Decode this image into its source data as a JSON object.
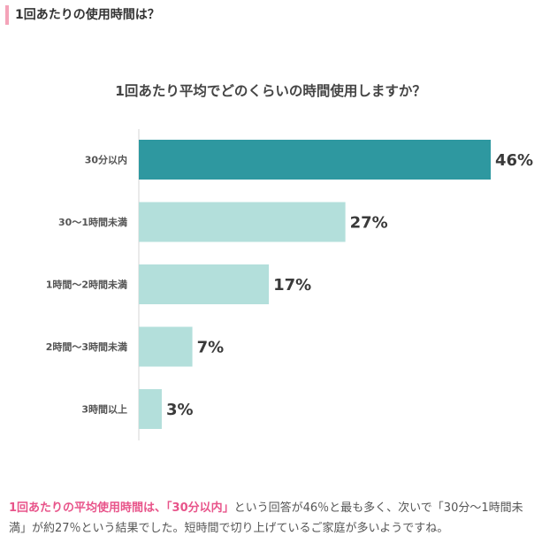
{
  "section": {
    "heading": "1回あたりの使用時間は？",
    "accent_color": "#f4a3b9"
  },
  "chart_data": {
    "type": "bar",
    "orientation": "horizontal",
    "title": "1回あたり平均でどのくらいの時間使用しますか？",
    "categories": [
      "30分以内",
      "30～1時間未満",
      "1時間～2時間未満",
      "2時間～3時間未満",
      "3時間以上"
    ],
    "values": [
      46,
      27,
      17,
      7,
      3
    ],
    "value_labels": [
      "46%",
      "27%",
      "17%",
      "7%",
      "3%"
    ],
    "unit": "%",
    "xlim": [
      0,
      46
    ],
    "grid": false,
    "legend": "none",
    "highlight_color": "#2e98a0",
    "bar_color": "#b3dfdb"
  },
  "summary": {
    "highlight_prefix": "1回あたりの平均使用時間は、「30分以内」",
    "text": "という回答が46％と最も多く、次いで「30分～1時間未満」が約27％という結果でした。短時間で切り上げているご家庭が多いようですね。",
    "highlight_color": "#e8548a"
  }
}
